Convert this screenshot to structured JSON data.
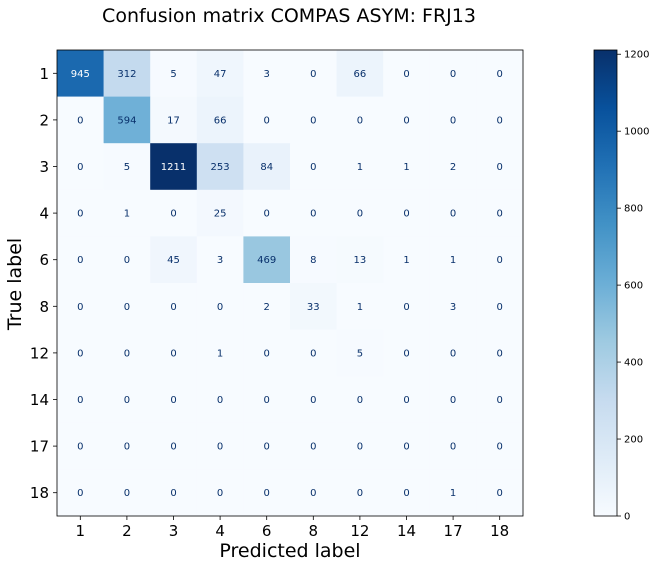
{
  "chart_data": {
    "type": "heatmap",
    "title": "Confusion matrix COMPAS ASYM: FRJ13",
    "xlabel": "Predicted label",
    "ylabel": "True label",
    "row_labels": [
      "1",
      "2",
      "3",
      "4",
      "6",
      "8",
      "12",
      "14",
      "17",
      "18"
    ],
    "col_labels": [
      "1",
      "2",
      "3",
      "4",
      "6",
      "8",
      "12",
      "14",
      "17",
      "18"
    ],
    "values": [
      [
        945,
        312,
        5,
        47,
        3,
        0,
        66,
        0,
        0,
        0
      ],
      [
        0,
        594,
        17,
        66,
        0,
        0,
        0,
        0,
        0,
        0
      ],
      [
        0,
        5,
        1211,
        253,
        84,
        0,
        1,
        1,
        2,
        0
      ],
      [
        0,
        1,
        0,
        25,
        0,
        0,
        0,
        0,
        0,
        0
      ],
      [
        0,
        0,
        45,
        3,
        469,
        8,
        13,
        1,
        1,
        0
      ],
      [
        0,
        0,
        0,
        0,
        2,
        33,
        1,
        0,
        3,
        0
      ],
      [
        0,
        0,
        0,
        1,
        0,
        0,
        5,
        0,
        0,
        0
      ],
      [
        0,
        0,
        0,
        0,
        0,
        0,
        0,
        0,
        0,
        0
      ],
      [
        0,
        0,
        0,
        0,
        0,
        0,
        0,
        0,
        0,
        0
      ],
      [
        0,
        0,
        0,
        0,
        0,
        0,
        0,
        0,
        1,
        0
      ]
    ],
    "colormap": "Blues",
    "vmin": 0,
    "vmax": 1211,
    "colorbar_ticks": [
      0,
      200,
      400,
      600,
      800,
      1000,
      1200
    ],
    "grid": false
  },
  "colors": {
    "text_light": "#ffffff",
    "text_dark": "#08306b",
    "axis": "#000000"
  }
}
